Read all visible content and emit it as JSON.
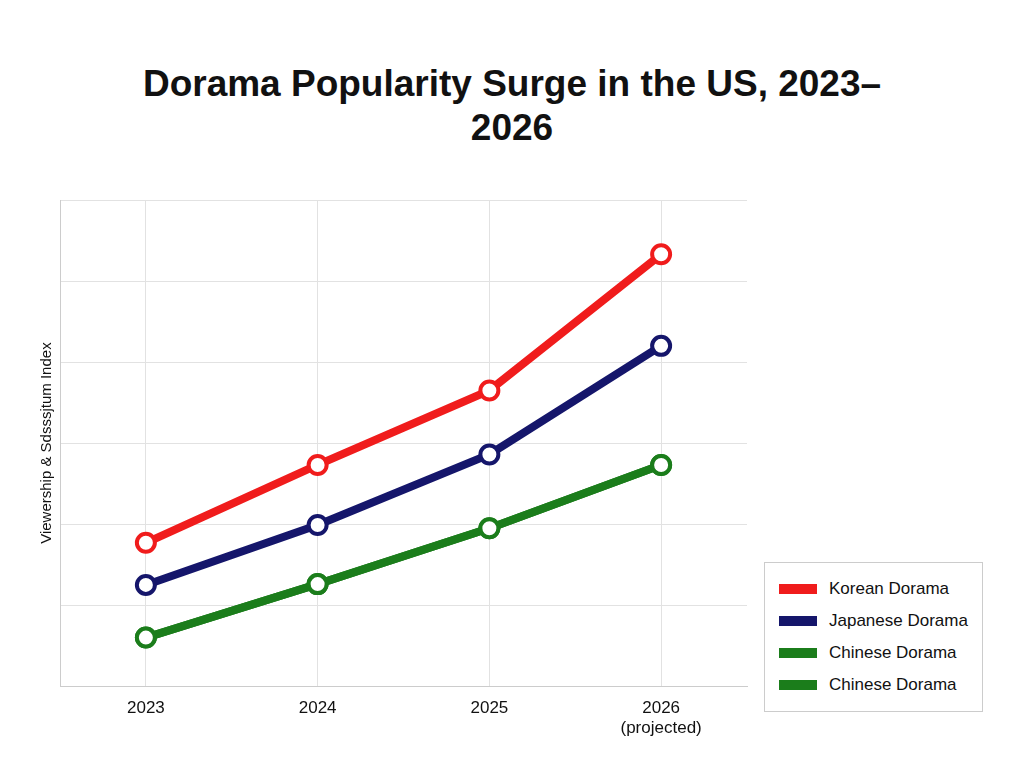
{
  "chart_data": {
    "type": "line",
    "title": "Dorama Popularity Surge in the US, 2023–2026",
    "y_label": "Viewership & Sdsssjtum Index",
    "categories": [
      "2023",
      "2024",
      "2025",
      "2026\n(projected)"
    ],
    "series": [
      {
        "name": "Korean Dorama",
        "color": "#f01c1c",
        "values": [
          17.7,
          27.3,
          36.5,
          53.3
        ]
      },
      {
        "name": "Japanese Dorama",
        "color": "#15166b",
        "values": [
          12.5,
          19.9,
          28.6,
          42.0
        ]
      },
      {
        "name": "Chinese Dorama",
        "color": "#1b7d1b",
        "values": [
          6.0,
          12.6,
          19.5,
          27.3
        ]
      },
      {
        "name": "Chinese Dorama",
        "color": "#1b7d1b",
        "values": [
          6.0,
          12.6,
          19.5,
          27.3
        ]
      }
    ],
    "ylim": [
      0,
      60
    ],
    "yticks": [
      0,
      10,
      20,
      30,
      40,
      50,
      60
    ],
    "grid": true,
    "legend": "lower right",
    "tick_labels": "x",
    "marker": "circle"
  }
}
